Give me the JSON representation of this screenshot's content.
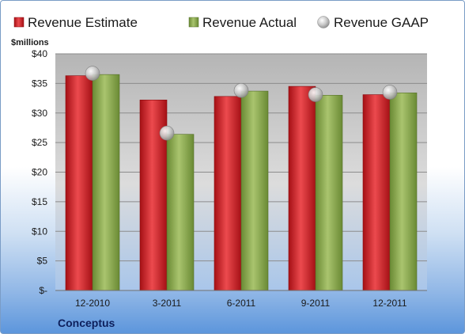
{
  "company": "Conceptus",
  "unit_label": "$millions",
  "colors": {
    "estimate": "#d0262b",
    "actual": "#8fae4f",
    "gaap": "#c9c9c9"
  },
  "chart_data": {
    "type": "bar",
    "categories": [
      "12-2010",
      "3-2011",
      "6-2011",
      "9-2011",
      "12-2011"
    ],
    "series": [
      {
        "name": "Revenue Estimate",
        "values": [
          36.3,
          32.2,
          32.8,
          34.5,
          33.1
        ]
      },
      {
        "name": "Revenue Actual",
        "values": [
          36.5,
          26.4,
          33.7,
          33.0,
          33.4
        ]
      }
    ],
    "markers": [
      {
        "name": "Revenue GAAP",
        "values": [
          36.7,
          26.6,
          33.8,
          33.1,
          33.5
        ]
      }
    ],
    "ylim": [
      0,
      40
    ],
    "yticks": [
      0,
      5,
      10,
      15,
      20,
      25,
      30,
      35,
      40
    ],
    "ytick_labels": [
      "$-",
      "$5",
      "$10",
      "$15",
      "$20",
      "$25",
      "$30",
      "$35",
      "$40"
    ],
    "legend_position": "top",
    "grid": true
  }
}
